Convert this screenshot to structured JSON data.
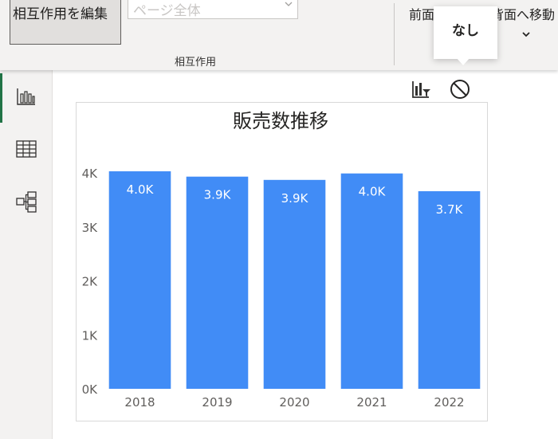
{
  "ribbon": {
    "edit_interactions_label": "相互作用を編集",
    "apply_to_select_value": "ページ全体",
    "group_label": "相互作用",
    "bring_forward_label": "前面",
    "send_backward_label": "背面へ移動"
  },
  "tooltip": {
    "text": "なし"
  },
  "left_rail": {
    "items": [
      {
        "icon": "report-view-icon",
        "active": true
      },
      {
        "icon": "data-view-icon",
        "active": false
      },
      {
        "icon": "model-view-icon",
        "active": false
      }
    ]
  },
  "visual_header": {
    "icons": [
      "filter-chart-icon",
      "none-icon"
    ]
  },
  "chart_data": {
    "type": "bar",
    "title": "販売数推移",
    "categories": [
      "2018",
      "2019",
      "2020",
      "2021",
      "2022"
    ],
    "values": [
      4030,
      3930,
      3870,
      3990,
      3660
    ],
    "data_labels": [
      "4.0K",
      "3.9K",
      "3.9K",
      "4.0K",
      "3.7K"
    ],
    "y_ticks": [
      {
        "value": 0,
        "label": "0K"
      },
      {
        "value": 1000,
        "label": "1K"
      },
      {
        "value": 2000,
        "label": "2K"
      },
      {
        "value": 3000,
        "label": "3K"
      },
      {
        "value": 4000,
        "label": "4K"
      }
    ],
    "ylim": [
      0,
      4000
    ],
    "bar_color": "#418cf6",
    "grid": false,
    "legend": "none"
  }
}
